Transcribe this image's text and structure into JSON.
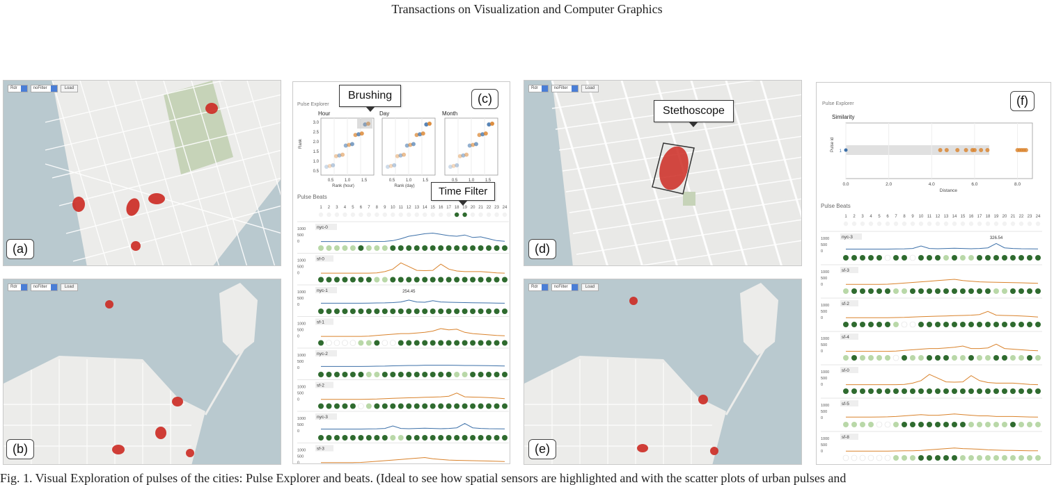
{
  "journal_header": "Transactions on Visualization and Computer Graphics",
  "panel_labels": {
    "a": "(a)",
    "b": "(b)",
    "c": "(c)",
    "d": "(d)",
    "e": "(e)",
    "f": "(f)"
  },
  "map_controls": {
    "select1": "Rdr",
    "select2": "noFilter",
    "button": "Load"
  },
  "callouts": {
    "brushing": "Brushing",
    "time_filter": "Time Filter",
    "stethoscope": "Stethoscope"
  },
  "panel_c": {
    "title": "Pulse Explorer",
    "scatter_titles": [
      "Hour",
      "Day",
      "Month"
    ],
    "ylabel": "Rank",
    "yticks": [
      "3.0",
      "2.5",
      "2.0",
      "1.5",
      "1.0",
      "0.5"
    ],
    "xticks": [
      "0.5",
      "1.0",
      "1.5"
    ],
    "xlabels": [
      "Rank (hour)",
      "Rank (day)",
      ""
    ],
    "beats_title": "Pulse Beats",
    "hours": [
      "1",
      "2",
      "3",
      "4",
      "5",
      "6",
      "7",
      "8",
      "9",
      "10",
      "11",
      "12",
      "13",
      "14",
      "15",
      "16",
      "17",
      "18",
      "19",
      "20",
      "21",
      "22",
      "23",
      "24"
    ],
    "yticks_small": [
      "1000",
      "500",
      "0"
    ],
    "rows": [
      {
        "name": "nyc-0",
        "color": "#3b6fa8",
        "vals": [
          80,
          80,
          80,
          80,
          80,
          80,
          80,
          85,
          90,
          150,
          300,
          500,
          600,
          700,
          750,
          650,
          550,
          500,
          600,
          400,
          450,
          300,
          150,
          100
        ],
        "dots": "LLLLLDLLLDDDDDDDDDDDDDDD",
        "note": ""
      },
      {
        "name": "sf-0",
        "color": "#d9822b",
        "vals": [
          80,
          80,
          80,
          80,
          80,
          80,
          80,
          100,
          200,
          400,
          900,
          600,
          300,
          280,
          300,
          800,
          400,
          250,
          200,
          200,
          200,
          150,
          100,
          80
        ],
        "dots": "DDDDDDDLLDDDDDDDDDDDDDDD",
        "note": ""
      },
      {
        "name": "nyc-1",
        "color": "#3b6fa8",
        "vals": [
          200,
          200,
          200,
          200,
          200,
          200,
          210,
          220,
          230,
          250,
          300,
          450,
          300,
          280,
          400,
          300,
          280,
          260,
          250,
          240,
          230,
          220,
          210,
          200
        ],
        "dots": "DDDDDDDDDDDDDDDDDDDDDDDD",
        "note": "254.45"
      },
      {
        "name": "sf-1",
        "color": "#d9822b",
        "vals": [
          80,
          80,
          80,
          80,
          80,
          80,
          100,
          150,
          200,
          250,
          300,
          300,
          350,
          400,
          500,
          700,
          600,
          650,
          400,
          300,
          250,
          200,
          150,
          120
        ],
        "dots": "DWWWWLLDWWDDDDDDDDDDDDDD",
        "note": ""
      },
      {
        "name": "nyc-2",
        "color": "#3b6fa8",
        "vals": [
          200,
          200,
          200,
          200,
          200,
          200,
          210,
          220,
          230,
          250,
          260,
          280,
          280,
          300,
          300,
          300,
          300,
          290,
          280,
          280,
          270,
          260,
          250,
          240
        ],
        "dots": "DDDDDDLLDDDDDDDDDLLDDDDD",
        "note": ""
      },
      {
        "name": "sf-2",
        "color": "#d9822b",
        "vals": [
          100,
          100,
          100,
          100,
          100,
          100,
          110,
          120,
          150,
          180,
          200,
          220,
          240,
          260,
          280,
          300,
          350,
          600,
          300,
          280,
          260,
          240,
          200,
          150
        ],
        "dots": "DDDDDWLDDDDDDDDDDDDDDDDD",
        "note": ""
      },
      {
        "name": "nyc-3",
        "color": "#3b6fa8",
        "vals": [
          250,
          250,
          250,
          250,
          250,
          250,
          260,
          270,
          300,
          500,
          300,
          280,
          300,
          320,
          300,
          280,
          300,
          350,
          700,
          350,
          300,
          280,
          270,
          260
        ],
        "dots": "DDDDDDDDDLLDDDDDDDDDDDDD",
        "note": ""
      },
      {
        "name": "sf-3",
        "color": "#d9822b",
        "vals": [
          100,
          100,
          100,
          100,
          100,
          110,
          150,
          200,
          250,
          300,
          350,
          400,
          450,
          500,
          400,
          350,
          300,
          280,
          260,
          250,
          240,
          220,
          200,
          180
        ],
        "dots": "LDDDDDLLDDDDDDDDDDLLDDDD",
        "note": ""
      }
    ]
  },
  "panel_f": {
    "title": "Pulse Explorer",
    "sim_title": "Similarity",
    "ylabel": "Pulse id",
    "y_tick": "1",
    "xticks": [
      "0.0",
      "2.0",
      "4.0",
      "6.0",
      "8.0"
    ],
    "xlabel": "Distance",
    "beats_title": "Pulse Beats",
    "hours": [
      "1",
      "2",
      "3",
      "4",
      "5",
      "6",
      "7",
      "8",
      "9",
      "10",
      "11",
      "12",
      "13",
      "14",
      "15",
      "16",
      "17",
      "18",
      "19",
      "20",
      "21",
      "22",
      "23",
      "24"
    ],
    "yticks_small": [
      "1000",
      "500",
      "0"
    ],
    "rows": [
      {
        "name": "nyc-3",
        "color": "#3b6fa8",
        "vals": [
          250,
          250,
          250,
          250,
          250,
          250,
          260,
          270,
          300,
          500,
          300,
          280,
          300,
          320,
          300,
          280,
          300,
          350,
          700,
          350,
          300,
          280,
          270,
          260
        ],
        "dots": "DDDDDWDDWDDDLDLLDDDDDDDD",
        "note": "326.54"
      },
      {
        "name": "sf-3",
        "color": "#d9822b",
        "vals": [
          100,
          100,
          100,
          100,
          100,
          110,
          150,
          200,
          250,
          300,
          350,
          400,
          450,
          500,
          400,
          350,
          300,
          280,
          260,
          250,
          240,
          220,
          200,
          180
        ],
        "dots": "LDDDDDLLDDDDDDDDDDLLDDDD",
        "note": ""
      },
      {
        "name": "sf-2",
        "color": "#d9822b",
        "vals": [
          100,
          100,
          100,
          100,
          100,
          100,
          110,
          120,
          150,
          180,
          200,
          220,
          240,
          260,
          280,
          300,
          350,
          600,
          300,
          280,
          260,
          240,
          200,
          150
        ],
        "dots": "DDDDDDLWWDDDDDDDDDDDDDDD",
        "note": ""
      },
      {
        "name": "sf-4",
        "color": "#d9822b",
        "vals": [
          80,
          80,
          80,
          80,
          80,
          80,
          100,
          150,
          200,
          250,
          300,
          300,
          350,
          400,
          500,
          300,
          300,
          350,
          650,
          300,
          250,
          200,
          150,
          120
        ],
        "dots": "LDLLLLWDLLDDDLLDLLDDLLDL",
        "note": ""
      },
      {
        "name": "sf-0",
        "color": "#d9822b",
        "vals": [
          80,
          80,
          80,
          80,
          80,
          80,
          80,
          100,
          200,
          400,
          900,
          600,
          300,
          280,
          300,
          800,
          400,
          250,
          200,
          200,
          200,
          150,
          100,
          80
        ],
        "dots": "DDDDDDDDDDDDDDDDDDDDDDDD",
        "note": ""
      },
      {
        "name": "sf-5",
        "color": "#d9822b",
        "vals": [
          150,
          150,
          150,
          150,
          160,
          170,
          200,
          250,
          300,
          350,
          300,
          300,
          350,
          400,
          350,
          300,
          250,
          250,
          200,
          200,
          200,
          180,
          160,
          150
        ],
        "dots": "LLLLWWLDDDDDDDDLLLLLDLLL",
        "note": ""
      },
      {
        "name": "sf-8",
        "color": "#d9822b",
        "vals": [
          100,
          100,
          100,
          100,
          100,
          100,
          110,
          120,
          130,
          150,
          200,
          250,
          300,
          350,
          300,
          280,
          250,
          200,
          180,
          160,
          150,
          140,
          130,
          120
        ],
        "dots": "WWWWWWLLLDDDDDLLLLLLLLLL",
        "note": ""
      }
    ]
  },
  "caption": "Fig. 1. Visual Exploration of pulses of the cities: Pulse Explorer and beats. (Ideal to see how spatial sensors are highlighted and with the scatter plots of urban pulses and"
}
